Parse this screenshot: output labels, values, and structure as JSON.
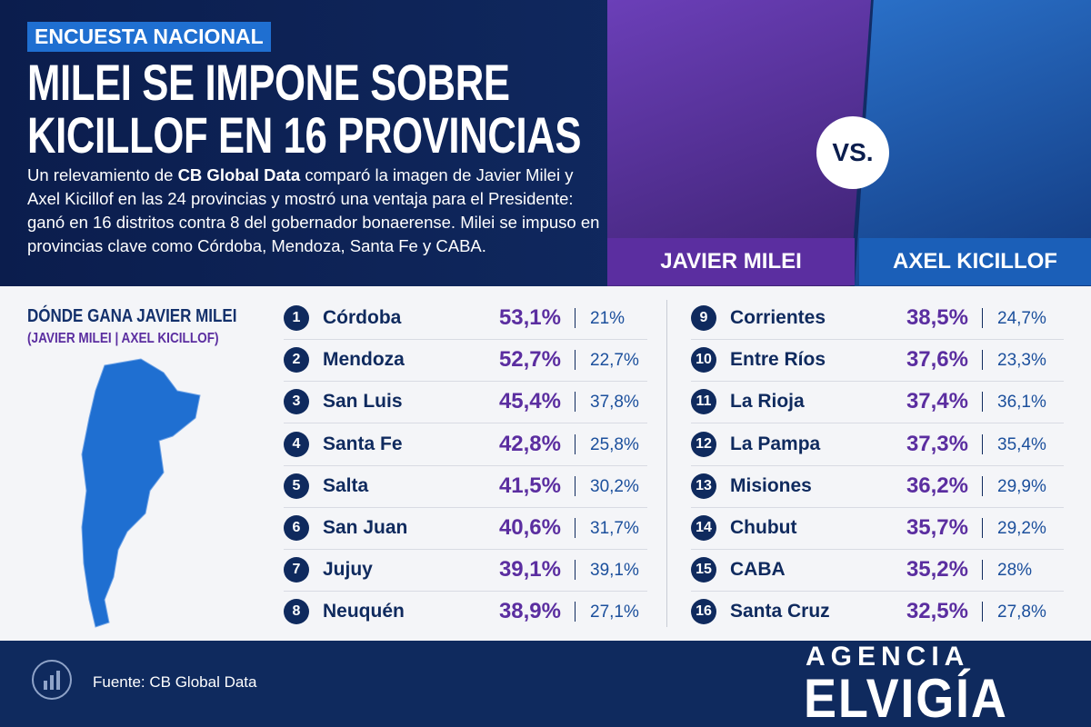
{
  "header": {
    "tag": "ENCUESTA NACIONAL",
    "title_lines": [
      "MILEI SE IMPONE SOBRE",
      "KICILLOF EN 16 PROVINCIAS"
    ],
    "intro": [
      "Un relevamiento de ",
      "CB Global Data",
      " comparó la imagen de Javier Milei y Axel Kicillof en las 24 provincias y mostró una ventaja para el Presidente: ganó en 16 distritos contra 8 del gobernador bonaerense. Milei se impuso en provincias clave como Córdoba, Mendoza, Santa Fe y CABA."
    ],
    "left_name": "JAVIER MILEI",
    "versus": "VS.",
    "right_name": "AXEL KICILLOF"
  },
  "map_panel": {
    "heading": "DÓNDE GANA JAVIER MILEI",
    "subheading": "(JAVIER MILEI | AXEL KICILLOF)"
  },
  "table": {
    "rows": [
      [
        1,
        "Córdoba",
        "53,1%",
        "21%"
      ],
      [
        2,
        "Mendoza",
        "52,7%",
        "22,7%"
      ],
      [
        3,
        "San Luis",
        "45,4%",
        "37,8%"
      ],
      [
        4,
        "Santa Fe",
        "42,8%",
        "25,8%"
      ],
      [
        5,
        "Salta",
        "41,5%",
        "30,2%"
      ],
      [
        6,
        "San Juan",
        "40,6%",
        "31,7%"
      ],
      [
        7,
        "Jujuy",
        "39,1%",
        "39,1%"
      ],
      [
        8,
        "Neuquén",
        "38,9%",
        "27,1%"
      ],
      [
        9,
        "Corrientes",
        "38,5%",
        "24,7%"
      ],
      [
        10,
        "Entre Ríos",
        "37,6%",
        "23,3%"
      ],
      [
        11,
        "La Rioja",
        "37,4%",
        "36,1%"
      ],
      [
        12,
        "La Pampa",
        "37,3%",
        "35,4%"
      ],
      [
        13,
        "Misiones",
        "36,2%",
        "29,9%"
      ],
      [
        14,
        "Chubut",
        "35,7%",
        "29,2%"
      ],
      [
        15,
        "CABA",
        "35,2%",
        "28%"
      ],
      [
        16,
        "Santa Cruz",
        "32,5%",
        "27,8%"
      ]
    ]
  },
  "footer": {
    "source": "Fuente: CB Global Data",
    "logo_top": "AGENCIA",
    "logo_bottom": "ELVIGÍA"
  }
}
